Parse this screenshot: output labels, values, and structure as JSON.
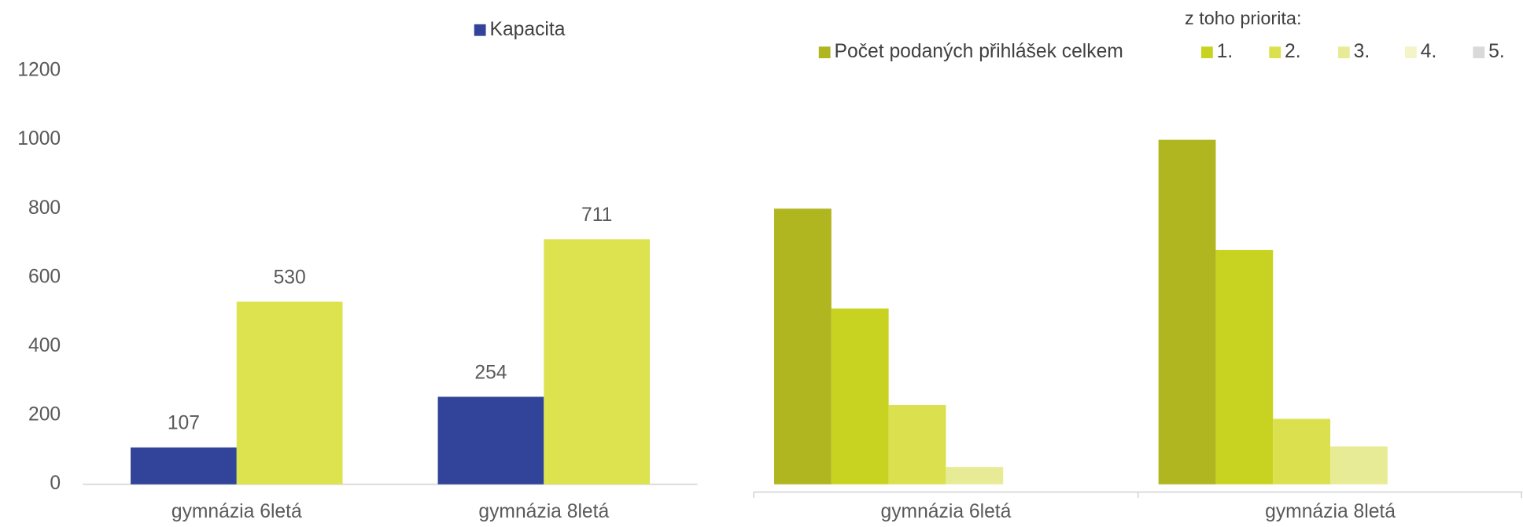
{
  "chart_data": [
    {
      "type": "bar",
      "categories": [
        "gymnázia 6letá",
        "gymnázia 8letá"
      ],
      "series": [
        {
          "name": "Kapacita",
          "color": "#314499",
          "values": [
            107,
            254
          ]
        },
        {
          "color": "#dce34e",
          "values": [
            530,
            711
          ]
        }
      ],
      "ylim": [
        0,
        1200
      ],
      "yticks": [
        0,
        200,
        400,
        600,
        800,
        1000,
        1200
      ]
    },
    {
      "type": "bar",
      "legend_title": "z toho priorita:",
      "categories": [
        "gymnázia 6letá",
        "gymnázia 8letá"
      ],
      "series": [
        {
          "name": "Počet podaných přihlášek celkem",
          "color": "#b0b61f",
          "values": [
            800,
            1000
          ]
        },
        {
          "name": "1.",
          "color": "#c8d321",
          "values": [
            510,
            680
          ]
        },
        {
          "name": "2.",
          "color": "#dbe14e",
          "values": [
            230,
            190
          ]
        },
        {
          "name": "3.",
          "color": "#e8eb96",
          "values": [
            50,
            110
          ]
        },
        {
          "name": "4.",
          "color": "#f3f4c8",
          "values": [
            0,
            0
          ]
        },
        {
          "name": "5.",
          "color": "#d9d9d9",
          "values": [
            0,
            0
          ]
        }
      ],
      "ylim": [
        0,
        1200
      ]
    }
  ]
}
